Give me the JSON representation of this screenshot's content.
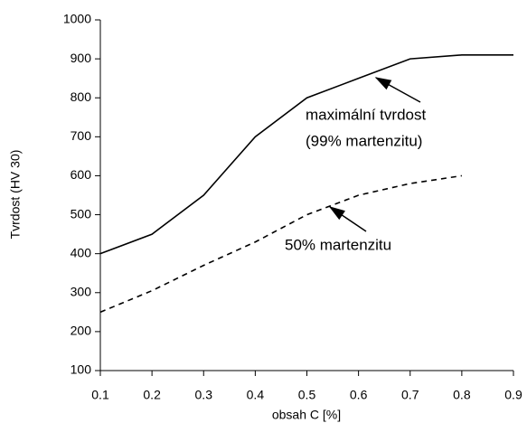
{
  "chart_data": {
    "type": "line",
    "xlabel": "obsah C [%]",
    "ylabel": "Tvrdost (HV 30)",
    "x": [
      0.1,
      0.2,
      0.3,
      0.4,
      0.5,
      0.6,
      0.7,
      0.8,
      0.9
    ],
    "series": [
      {
        "name": "maximální tvrdost (99% martenzitu)",
        "color": "#000000",
        "dash": false,
        "values": [
          400,
          450,
          550,
          700,
          800,
          850,
          900,
          910,
          910
        ]
      },
      {
        "name": "50% martenzitu",
        "color": "#000000",
        "dash": true,
        "values": [
          250,
          305,
          370,
          430,
          500,
          550,
          580,
          600,
          null
        ]
      }
    ],
    "annotations": [
      "maximální tvrdost",
      "(99% martenzitu)",
      "50% martenzitu"
    ],
    "xlim": [
      0.1,
      0.9
    ],
    "xticks": [
      0.1,
      0.2,
      0.3,
      0.4,
      0.5,
      0.6,
      0.7,
      0.8,
      0.9
    ],
    "ylim": [
      100,
      1000
    ],
    "yticks": [
      100,
      200,
      300,
      400,
      500,
      600,
      700,
      800,
      900,
      1000
    ],
    "grid": false
  }
}
